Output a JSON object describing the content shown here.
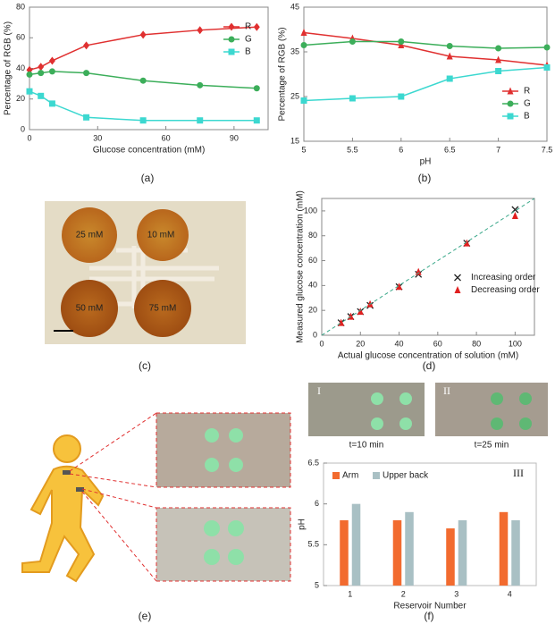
{
  "chart_data": [
    {
      "type": "line",
      "label": "(a)",
      "x_label": "Glucose concentration (mM)",
      "y_label": "Percentage of RGB (%)",
      "x": [
        0,
        5,
        10,
        25,
        50,
        75,
        100
      ],
      "xlim": [
        0,
        105
      ],
      "xticks": [
        0,
        30,
        60,
        90
      ],
      "ylim": [
        0,
        80
      ],
      "yticks": [
        0,
        20,
        40,
        60,
        80
      ],
      "legend": "upper right",
      "grid": false,
      "series": [
        {
          "name": "R",
          "color": "#e03030",
          "marker": "diamond",
          "values": [
            39,
            41,
            45,
            55,
            62,
            65,
            67
          ]
        },
        {
          "name": "G",
          "color": "#3cae5a",
          "marker": "circle",
          "values": [
            36,
            37,
            38,
            37,
            32,
            29,
            27
          ]
        },
        {
          "name": "B",
          "color": "#3cd8d0",
          "marker": "square",
          "values": [
            25,
            22,
            17,
            8,
            6,
            6,
            6
          ]
        }
      ]
    },
    {
      "type": "line",
      "label": "(b)",
      "x_label": "pH",
      "y_label": "Percentage of RGB (%)",
      "x": [
        5,
        5.5,
        6,
        6.5,
        7,
        7.5
      ],
      "xlim": [
        5,
        7.5
      ],
      "xticks": [
        5,
        5.5,
        6,
        6.5,
        7,
        7.5
      ],
      "ylim": [
        15,
        45
      ],
      "yticks": [
        15,
        25,
        35,
        45
      ],
      "legend": "lower right",
      "grid": false,
      "series": [
        {
          "name": "R",
          "color": "#e03030",
          "marker": "triangle",
          "values": [
            39.3,
            38,
            36.5,
            34,
            33.2,
            32
          ]
        },
        {
          "name": "G",
          "color": "#3cae5a",
          "marker": "circle",
          "values": [
            36.5,
            37.3,
            37.3,
            36.3,
            35.8,
            36
          ]
        },
        {
          "name": "B",
          "color": "#3cd8d0",
          "marker": "square",
          "values": [
            24.1,
            24.6,
            25,
            29,
            30.7,
            31.5
          ]
        }
      ]
    },
    {
      "type": "scatter",
      "label": "(d)",
      "x_label": "Actual glucose concentration of solution (mM)",
      "y_label": "Measured glucose concentration (mM)",
      "xlim": [
        0,
        110
      ],
      "xticks": [
        0,
        20,
        40,
        60,
        80,
        100
      ],
      "ylim": [
        0,
        110
      ],
      "yticks": [
        0,
        20,
        40,
        60,
        80,
        100
      ],
      "legend": "center right",
      "grid": false,
      "series": [
        {
          "name": "Increasing order",
          "color": "#222222",
          "marker": "x",
          "x": [
            10,
            15,
            20,
            25,
            40,
            50,
            75,
            100
          ],
          "values": [
            10,
            15,
            19,
            24,
            39,
            49,
            74,
            101
          ]
        },
        {
          "name": "Decreasing order",
          "color": "#e02020",
          "marker": "triangle",
          "x": [
            10,
            15,
            20,
            25,
            40,
            50,
            75,
            100
          ],
          "values": [
            10,
            15,
            19,
            25,
            39,
            51,
            74,
            96
          ]
        }
      ]
    },
    {
      "type": "bar",
      "label": "(f)",
      "annotation": "III",
      "x_label": "Reservoir Number",
      "y_label": "pH",
      "categories": [
        "1",
        "2",
        "3",
        "4"
      ],
      "ylim": [
        5,
        6.5
      ],
      "yticks": [
        5,
        5.5,
        6,
        6.5
      ],
      "legend": "upper left",
      "grid": false,
      "series": [
        {
          "name": "Arm",
          "color": "#f26b2f",
          "values": [
            5.8,
            5.8,
            5.7,
            5.9
          ]
        },
        {
          "name": "Upper back",
          "color": "#a9c0c4",
          "values": [
            6.0,
            5.9,
            5.8,
            5.8
          ]
        }
      ]
    }
  ],
  "images": {
    "c": {
      "label": "(c)",
      "texts": [
        "25 mM",
        "10 mM",
        "50 mM",
        "75 mM"
      ]
    },
    "e": {
      "label": "(e)"
    },
    "f": {
      "texts": [
        "I",
        "II",
        "t=10 min",
        "t=25 min"
      ]
    }
  }
}
